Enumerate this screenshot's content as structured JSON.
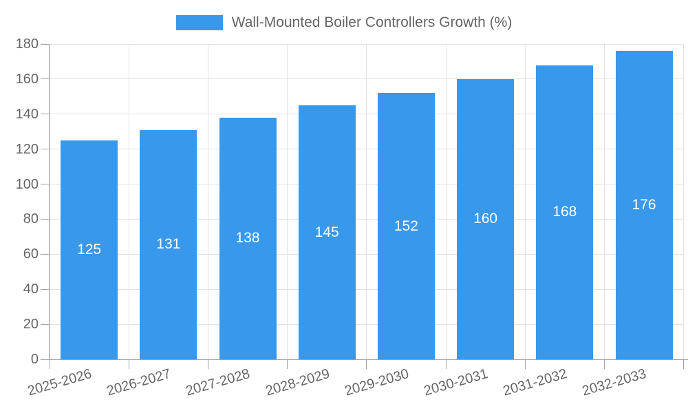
{
  "chart_data": {
    "type": "bar",
    "title": "Wall-Mounted Boiler Controllers Growth (%)",
    "legend": {
      "label": "Wall-Mounted Boiler Controllers Growth (%)",
      "position": "top"
    },
    "categories": [
      "2025-2026",
      "2026-2027",
      "2027-2028",
      "2028-2029",
      "2029-2030",
      "2030-2031",
      "2031-2032",
      "2032-2033"
    ],
    "series": [
      {
        "name": "Wall-Mounted Boiler Controllers Growth (%)",
        "values": [
          125,
          131,
          138,
          145,
          152,
          160,
          168,
          176
        ]
      }
    ],
    "xlabel": "",
    "ylabel": "",
    "ylim": [
      0,
      180
    ],
    "ytick_step": 20,
    "grid": true,
    "x_label_rotation_deg": -16,
    "colors": {
      "bar": "#3899ec",
      "value_label": "#ffffff",
      "axis_text": "#666666",
      "axis_line": "#a3a3a3",
      "gridline": "#e3e3e3",
      "background": "#ffffff"
    }
  }
}
